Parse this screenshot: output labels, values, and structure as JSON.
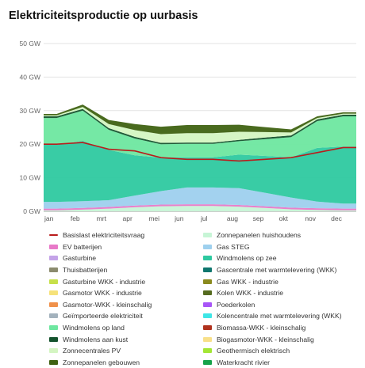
{
  "page": {
    "title": "Elektriciteitsproductie op uurbasis"
  },
  "chart_data": {
    "type": "area",
    "title": "Elektriciteitsproductie op uurbasis",
    "ylim": [
      0,
      50
    ],
    "y_ticks": [
      "0 GW",
      "10 GW",
      "20 GW",
      "30 GW",
      "40 GW",
      "50 GW"
    ],
    "categories": [
      "jan",
      "feb",
      "mrt",
      "apr",
      "mei",
      "jun",
      "jul",
      "aug",
      "sep",
      "okt",
      "nov",
      "dec"
    ],
    "grid": true,
    "legend_position": "bottom",
    "series": [
      {
        "name": "Basislast elektriciteitsvraag",
        "color": "#b91c1c",
        "kind": "line",
        "values": [
          20,
          20.5,
          18.5,
          18,
          16,
          15.5,
          15.5,
          15,
          15.5,
          16,
          17.5,
          19
        ]
      },
      {
        "name": "Zonnepanelen huishoudens",
        "color": "#c7f5d6",
        "values": [
          0.3,
          0.5,
          0.8,
          1.2,
          1.5,
          1.6,
          1.6,
          1.4,
          1.0,
          0.6,
          0.4,
          0.3
        ]
      },
      {
        "name": "EV batterijen",
        "color": "#e879c8",
        "values": [
          0.5,
          0.5,
          0.5,
          0.5,
          0.5,
          0.5,
          0.5,
          0.5,
          0.5,
          0.5,
          0.5,
          0.5
        ]
      },
      {
        "name": "Gas STEG",
        "color": "#9ed0ee",
        "values": [
          2,
          2,
          2,
          3,
          4,
          5,
          5,
          5,
          4,
          3,
          2,
          1.5
        ]
      },
      {
        "name": "Gasturbine",
        "color": "#c4a3e8",
        "values": [
          0,
          0,
          0,
          0,
          0,
          0,
          0,
          0,
          0,
          0,
          0,
          0
        ]
      },
      {
        "name": "Windmolens op zee",
        "color": "#2ec9a0",
        "values": [
          17,
          18,
          15,
          12,
          10,
          9,
          9,
          10,
          11,
          12,
          16,
          17
        ]
      },
      {
        "name": "Thuisbatterijen",
        "color": "#8b8b6e",
        "values": [
          0,
          0,
          0,
          0,
          0,
          0,
          0,
          0,
          0,
          0,
          0,
          0
        ]
      },
      {
        "name": "Gascentrale met warmtelevering (WKK)",
        "color": "#0f766e",
        "values": [
          0,
          0,
          0,
          0,
          0,
          0,
          0,
          0,
          0,
          0,
          0,
          0
        ]
      },
      {
        "name": "Gasturbine WKK - industrie",
        "color": "#c7e04a",
        "values": [
          0,
          0,
          0,
          0,
          0,
          0,
          0,
          0,
          0,
          0,
          0,
          0
        ]
      },
      {
        "name": "Gas WKK - industrie",
        "color": "#8a8a1e",
        "values": [
          0,
          0,
          0,
          0,
          0,
          0,
          0,
          0,
          0,
          0,
          0,
          0
        ]
      },
      {
        "name": "Gasmotor WKK - industrie",
        "color": "#f6e27a",
        "values": [
          0,
          0,
          0,
          0,
          0,
          0,
          0,
          0,
          0,
          0,
          0,
          0
        ]
      },
      {
        "name": "Kolen WKK - industrie",
        "color": "#556b1f",
        "values": [
          0,
          0,
          0,
          0,
          0,
          0,
          0,
          0,
          0,
          0,
          0,
          0
        ]
      },
      {
        "name": "Gasmotor-WKK - kleinschalig",
        "color": "#f0914a",
        "values": [
          0,
          0,
          0,
          0,
          0,
          0,
          0,
          0,
          0,
          0,
          0,
          0
        ]
      },
      {
        "name": "Poederkolen",
        "color": "#a855f7",
        "values": [
          0,
          0,
          0,
          0,
          0,
          0,
          0,
          0,
          0,
          0,
          0,
          0
        ]
      },
      {
        "name": "Geïmporteerde elektriciteit",
        "color": "#a3b2bd",
        "values": [
          0,
          0,
          0,
          0,
          0,
          0,
          0,
          0,
          0,
          0,
          0,
          0
        ]
      },
      {
        "name": "Kolencentrale met warmtelevering (WKK)",
        "color": "#3ee6e6",
        "values": [
          0,
          0,
          0,
          0,
          0,
          0,
          0,
          0,
          0,
          0,
          0,
          0
        ]
      },
      {
        "name": "Windmolens op land",
        "color": "#6ee7a0",
        "values": [
          8,
          9,
          6,
          5,
          4,
          4,
          4,
          4,
          5,
          6,
          8,
          9
        ]
      },
      {
        "name": "Biomassa-WKK - kleinschalig",
        "color": "#b0321e",
        "values": [
          0,
          0,
          0,
          0,
          0,
          0,
          0,
          0,
          0,
          0,
          0,
          0
        ]
      },
      {
        "name": "Windmolens aan kust",
        "color": "#14532d",
        "values": [
          0.5,
          0.5,
          0.5,
          0.5,
          0.4,
          0.4,
          0.4,
          0.4,
          0.5,
          0.5,
          0.5,
          0.5
        ]
      },
      {
        "name": "Biogasmotor-WKK - kleinschalig",
        "color": "#f8e08a",
        "values": [
          0,
          0,
          0,
          0,
          0,
          0,
          0,
          0,
          0,
          0,
          0,
          0
        ]
      },
      {
        "name": "Zonnecentrales PV",
        "color": "#d4f5c2",
        "values": [
          0.3,
          0.6,
          1.2,
          2,
          2.6,
          2.8,
          2.8,
          2.4,
          1.6,
          0.9,
          0.4,
          0.3
        ]
      },
      {
        "name": "Geothermisch elektrisch",
        "color": "#a3e635",
        "values": [
          0,
          0,
          0,
          0,
          0,
          0,
          0,
          0,
          0,
          0,
          0,
          0
        ]
      },
      {
        "name": "Zonnepanelen gebouwen",
        "color": "#3f6212",
        "values": [
          0.4,
          0.7,
          1.2,
          1.8,
          2.2,
          2.4,
          2.4,
          2.1,
          1.5,
          0.9,
          0.5,
          0.4
        ]
      },
      {
        "name": "Waterkracht rivier",
        "color": "#16a34a",
        "values": [
          0,
          0,
          0,
          0,
          0,
          0,
          0,
          0,
          0,
          0,
          0,
          0
        ]
      }
    ]
  }
}
